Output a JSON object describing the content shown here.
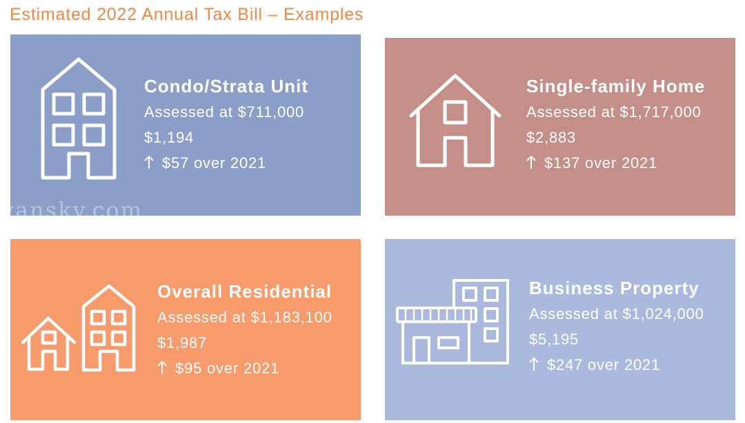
{
  "page": {
    "title": "Estimated 2022 Annual Tax Bill – Examples",
    "watermark": "vansky.com"
  },
  "colors": {
    "title": "#ef8747",
    "text": "#ffffff"
  },
  "cards": [
    {
      "icon": "condo-building-icon",
      "color": "#8b9ec8",
      "name": "Condo/Strata Unit",
      "assessed": "Assessed at $711,000",
      "tax": "$1,194",
      "change_icon": "up-arrow-icon",
      "change": "$57 over 2021"
    },
    {
      "icon": "house-icon",
      "color": "#c58f89",
      "name": "Single-family Home",
      "assessed": "Assessed at $1,717,000",
      "tax": "$2,883",
      "change_icon": "up-arrow-icon",
      "change": "$137 over 2021"
    },
    {
      "icon": "house-and-condo-icon",
      "color": "#f79b6d",
      "name": "Overall Residential",
      "assessed": "Assessed at $1,183,100",
      "tax": "$1,987",
      "change_icon": "up-arrow-icon",
      "change": "$95 over 2021"
    },
    {
      "icon": "storefront-building-icon",
      "color": "#abb9de",
      "name": "Business Property",
      "assessed": "Assessed at $1,024,000",
      "tax": "$5,195",
      "change_icon": "up-arrow-icon",
      "change": "$247 over 2021"
    }
  ]
}
